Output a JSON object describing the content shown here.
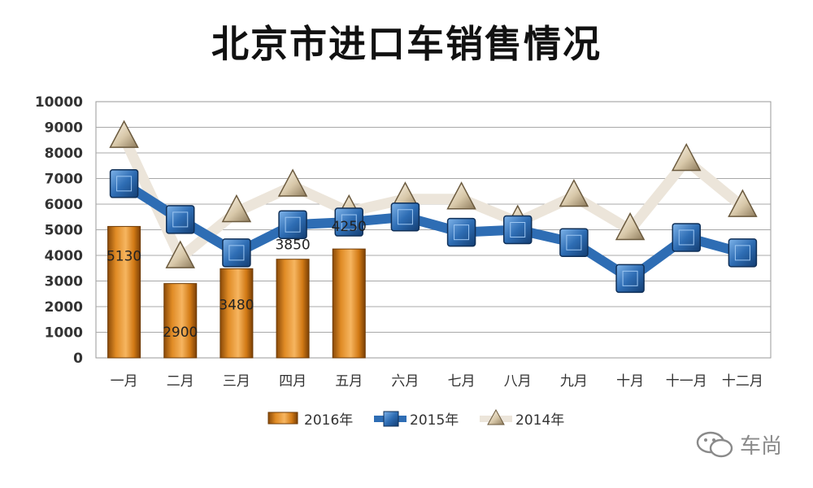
{
  "chart_data": {
    "type": "bar",
    "title": "北京市进口车销售情况",
    "categories": [
      "一月",
      "二月",
      "三月",
      "四月",
      "五月",
      "六月",
      "七月",
      "八月",
      "九月",
      "十月",
      "十一月",
      "十二月"
    ],
    "ylim": [
      0,
      10000
    ],
    "yticks": [
      0,
      1000,
      2000,
      3000,
      4000,
      5000,
      6000,
      7000,
      8000,
      9000,
      10000
    ],
    "grid": true,
    "legend_position": "bottom",
    "series": [
      {
        "name": "2016年",
        "kind": "bar",
        "marker": "bar",
        "color": "#d9831a",
        "values": [
          5130,
          2900,
          3480,
          3850,
          4250,
          null,
          null,
          null,
          null,
          null,
          null,
          null
        ],
        "labels": [
          "5130",
          "2900",
          "3480",
          "3850",
          "4250"
        ]
      },
      {
        "name": "2015年",
        "kind": "line",
        "marker": "square",
        "color": "#2e6db4",
        "values": [
          6800,
          5400,
          4100,
          5200,
          5300,
          5500,
          4900,
          5000,
          4500,
          3100,
          4700,
          4100
        ]
      },
      {
        "name": "2014年",
        "kind": "line",
        "marker": "triangle",
        "color": "#e6ded2",
        "values": [
          8600,
          3900,
          5700,
          6700,
          5700,
          6200,
          6200,
          5300,
          6300,
          5000,
          7700,
          5900
        ]
      }
    ]
  },
  "watermark": {
    "text": "车尚",
    "icon": "wechat-icon"
  }
}
